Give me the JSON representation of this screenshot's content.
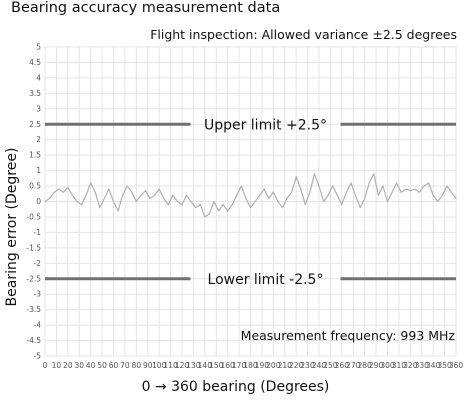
{
  "chart_data": {
    "type": "line",
    "title": "Bearing accuracy measurement data",
    "subtitle": "Flight inspection: Allowed variance ±2.5 degrees",
    "xlabel": "0 → 360 bearing (Degrees)",
    "ylabel": "Bearing error (Degree)",
    "xlim": [
      0,
      360
    ],
    "ylim": [
      -5,
      5
    ],
    "x_ticks": [
      "0",
      "10",
      "20",
      "30",
      "40",
      "50",
      "60",
      "70",
      "80",
      "90",
      "100",
      "110",
      "120",
      "130",
      "140",
      "150",
      "160",
      "170",
      "180",
      "190",
      "200",
      "210",
      "220",
      "230",
      "240",
      "250",
      "260",
      "270",
      "280",
      "290",
      "300",
      "310",
      "320",
      "330",
      "340",
      "350",
      "360"
    ],
    "y_ticks": [
      "-5",
      "-4.5",
      "-4",
      "-3.5",
      "-3",
      "-2.5",
      "-2",
      "-1.5",
      "-1",
      "-0.5",
      "0",
      "0.5",
      "1",
      "1.5",
      "2",
      "2.5",
      "3",
      "3.5",
      "4",
      "4.5",
      "5"
    ],
    "grid": true,
    "annotation": "Measurement frequency: 993 MHz",
    "series": [
      {
        "color": "#b0b0b0",
        "x": [
          0,
          4,
          8,
          12,
          16,
          20,
          24,
          28,
          32,
          36,
          40,
          44,
          48,
          52,
          56,
          60,
          64,
          68,
          72,
          76,
          80,
          84,
          88,
          92,
          96,
          100,
          104,
          108,
          112,
          116,
          120,
          124,
          128,
          132,
          136,
          140,
          144,
          148,
          152,
          156,
          160,
          164,
          168,
          172,
          176,
          180,
          184,
          188,
          192,
          196,
          200,
          204,
          208,
          212,
          216,
          220,
          224,
          228,
          232,
          236,
          240,
          244,
          248,
          252,
          256,
          260,
          264,
          268,
          272,
          276,
          280,
          284,
          288,
          292,
          296,
          300,
          304,
          308,
          312,
          316,
          320,
          324,
          328,
          332,
          336,
          340,
          344,
          348,
          352,
          356,
          360
        ],
        "y": [
          0.0,
          0.1,
          0.3,
          0.4,
          0.3,
          0.45,
          0.2,
          0.0,
          -0.1,
          0.2,
          0.6,
          0.3,
          -0.2,
          0.1,
          0.4,
          0.0,
          -0.3,
          0.2,
          0.5,
          0.3,
          0.0,
          0.2,
          0.35,
          0.1,
          0.2,
          0.4,
          0.1,
          -0.1,
          0.2,
          0.0,
          -0.1,
          0.2,
          0.0,
          -0.2,
          -0.1,
          -0.5,
          -0.4,
          0.0,
          -0.3,
          -0.1,
          -0.3,
          -0.1,
          0.2,
          0.5,
          0.1,
          -0.2,
          0.0,
          0.2,
          0.4,
          0.1,
          0.3,
          0.0,
          -0.2,
          0.1,
          0.3,
          0.8,
          0.4,
          -0.1,
          0.3,
          0.9,
          0.5,
          0.0,
          0.2,
          0.5,
          0.2,
          -0.1,
          0.3,
          0.6,
          0.2,
          -0.2,
          0.1,
          0.6,
          0.9,
          0.2,
          0.5,
          0.0,
          0.3,
          0.6,
          0.3,
          0.4,
          0.35,
          0.4,
          0.3,
          0.5,
          0.6,
          0.2,
          0.0,
          0.2,
          0.5,
          0.3,
          0.1
        ]
      }
    ],
    "reference_lines": [
      {
        "y": 2.5,
        "label": "Upper limit +2.5°",
        "color": "#707070"
      },
      {
        "y": -2.5,
        "label": "Lower limit -2.5°",
        "color": "#707070"
      }
    ]
  }
}
